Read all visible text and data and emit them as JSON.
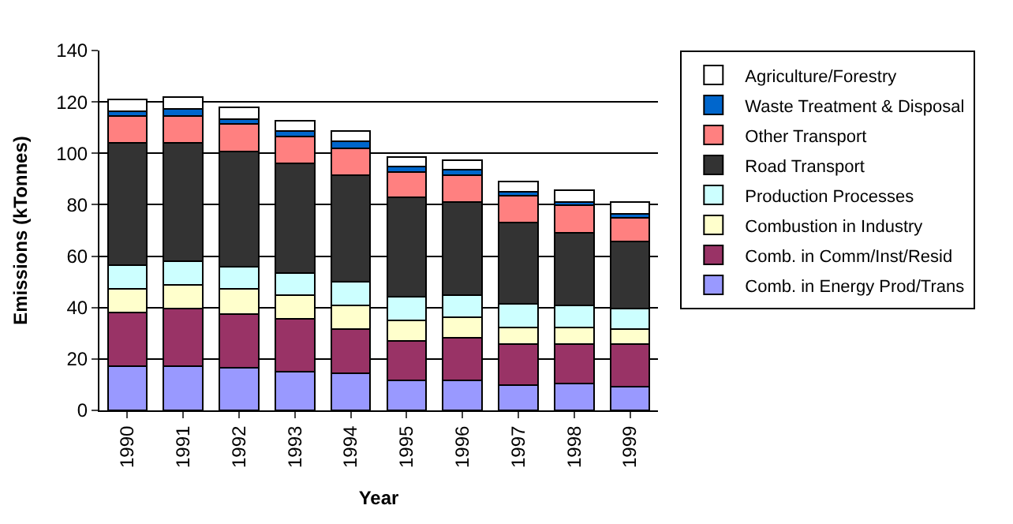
{
  "chart_data": {
    "type": "bar",
    "stacked": true,
    "xlabel": "Year",
    "ylabel": "Emissions (kTonnes)",
    "categories": [
      "1990",
      "1991",
      "1992",
      "1993",
      "1994",
      "1995",
      "1996",
      "1997",
      "1998",
      "1999"
    ],
    "ylim": [
      0,
      140
    ],
    "yticks": [
      0,
      20,
      40,
      60,
      80,
      100,
      120,
      140
    ],
    "grid": "y",
    "legend": "right",
    "series": [
      {
        "name": "Comb. in Energy Prod/Trans",
        "color": "#9999ff",
        "values": [
          17.1,
          17.1,
          16.5,
          15.1,
          14.5,
          11.8,
          11.8,
          9.9,
          10.5,
          9.2
        ]
      },
      {
        "name": "Comb. in Comm/Inst/Resid",
        "color": "#993366",
        "values": [
          21.1,
          22.4,
          21.0,
          20.4,
          17.1,
          15.2,
          16.5,
          15.8,
          15.2,
          16.5
        ]
      },
      {
        "name": "Combustion in Industry",
        "color": "#ffffcc",
        "values": [
          9.2,
          9.2,
          9.9,
          9.3,
          9.2,
          7.9,
          7.9,
          6.6,
          6.6,
          5.9
        ]
      },
      {
        "name": "Production Processes",
        "color": "#ccffff",
        "values": [
          9.2,
          9.2,
          8.6,
          8.5,
          9.2,
          9.2,
          8.6,
          9.2,
          8.5,
          7.9
        ]
      },
      {
        "name": "Road Transport",
        "color": "#333333",
        "values": [
          47.4,
          46.1,
          44.7,
          42.8,
          41.5,
          38.9,
          36.2,
          31.6,
          28.3,
          26.3
        ]
      },
      {
        "name": "Other Transport",
        "color": "#ff8080",
        "values": [
          10.5,
          10.5,
          10.6,
          10.5,
          10.5,
          9.8,
          10.5,
          10.5,
          10.6,
          9.2
        ]
      },
      {
        "name": "Waste Treatment & Disposal",
        "color": "#0066cc",
        "values": [
          2.0,
          2.7,
          1.9,
          2.0,
          2.7,
          2.0,
          2.0,
          1.3,
          1.3,
          1.4
        ]
      },
      {
        "name": "Agriculture/Forestry",
        "color": "#ffffff",
        "values": [
          4.5,
          4.6,
          4.8,
          4.0,
          3.9,
          3.9,
          3.9,
          4.0,
          4.6,
          4.6
        ]
      }
    ]
  }
}
